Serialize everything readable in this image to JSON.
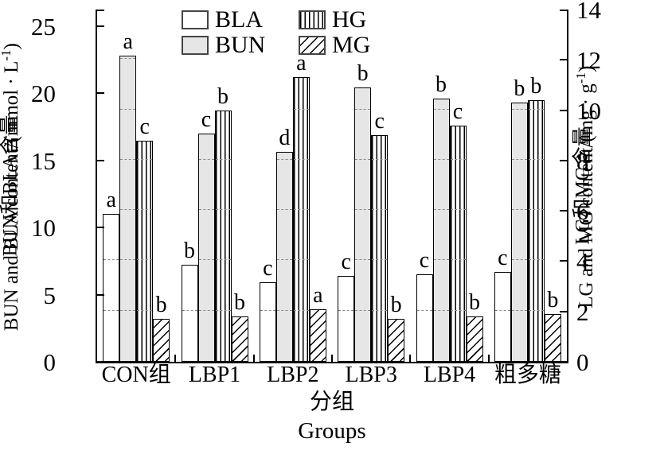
{
  "chart_data": {
    "type": "bar",
    "title": "",
    "categories": [
      "CON组",
      "LBP1",
      "LBP2",
      "LBP3",
      "LBP4",
      "粗多糖"
    ],
    "series": [
      {
        "name": "BLA",
        "axis": "left",
        "pattern": "plain-white",
        "values": [
          11.0,
          7.2,
          5.9,
          6.4,
          6.5,
          6.7
        ],
        "letters": [
          "a",
          "b",
          "c",
          "c",
          "c",
          "c"
        ]
      },
      {
        "name": "BUN",
        "axis": "left",
        "pattern": "solid-gray",
        "values": [
          22.8,
          17.0,
          15.6,
          20.4,
          19.6,
          19.3
        ],
        "letters": [
          "a",
          "c",
          "d",
          "b",
          "b",
          "b"
        ]
      },
      {
        "name": "HG",
        "axis": "right",
        "pattern": "vertical-hatch",
        "values": [
          8.8,
          10.0,
          11.3,
          9.0,
          9.4,
          10.4
        ],
        "letters": [
          "c",
          "b",
          "a",
          "c",
          "c",
          "b"
        ]
      },
      {
        "name": "MG",
        "axis": "right",
        "pattern": "diagonal-hatch",
        "values": [
          1.7,
          1.8,
          2.1,
          1.7,
          1.8,
          1.9
        ],
        "letters": [
          "b",
          "b",
          "a",
          "b",
          "b",
          "b"
        ]
      }
    ],
    "left_axis": {
      "title_zh": "BUN和BLA含量",
      "title_en_pre": "BUN and BLA content/(mmol · L",
      "title_en_sup": "-1",
      "title_en_post": ")",
      "ticks": [
        0,
        5,
        10,
        15,
        20,
        25
      ],
      "range": [
        0,
        26.2
      ]
    },
    "right_axis": {
      "title_en_pre": "LG and MG content/(mg · g",
      "title_en_sup": "-1",
      "title_en_post": ")",
      "title_zh": "LG和MG含量",
      "ticks": [
        0,
        2,
        4,
        6,
        8,
        10,
        12,
        14
      ],
      "range": [
        0,
        14
      ]
    },
    "x_axis": {
      "label_zh": "分组",
      "label_en": "Groups"
    },
    "legend": {
      "order": [
        "BLA",
        "HG",
        "BUN",
        "MG"
      ]
    },
    "layout": {
      "grid": "dashed lines at right-axis ticks visible inside bars",
      "legend_position": "top-left inside plot"
    },
    "colors": {
      "bar_gray": "#e6e6e6",
      "line": "#000000",
      "background": "#ffffff"
    }
  }
}
